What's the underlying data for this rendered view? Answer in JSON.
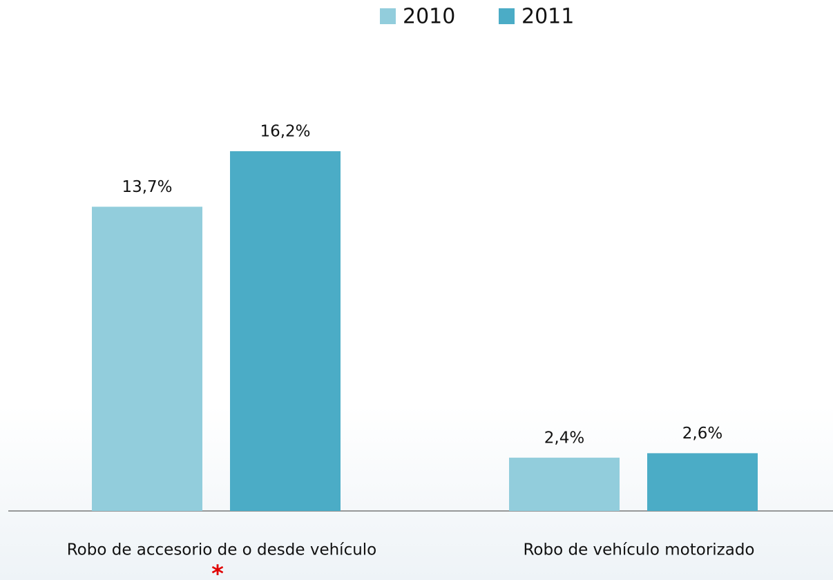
{
  "chart_data": {
    "type": "bar",
    "categories": [
      "Robo de accesorio de o desde vehículo",
      "Robo de vehículo motorizado"
    ],
    "series": [
      {
        "name": "2010",
        "color": "#92cddc",
        "values": [
          13.7,
          2.4
        ],
        "value_labels": [
          "13,7%",
          "2,4%"
        ]
      },
      {
        "name": "2011",
        "color": "#4bacc6",
        "values": [
          16.2,
          2.6
        ],
        "value_labels": [
          "16,2%",
          "2,6%"
        ]
      }
    ],
    "annotation": "*"
  }
}
